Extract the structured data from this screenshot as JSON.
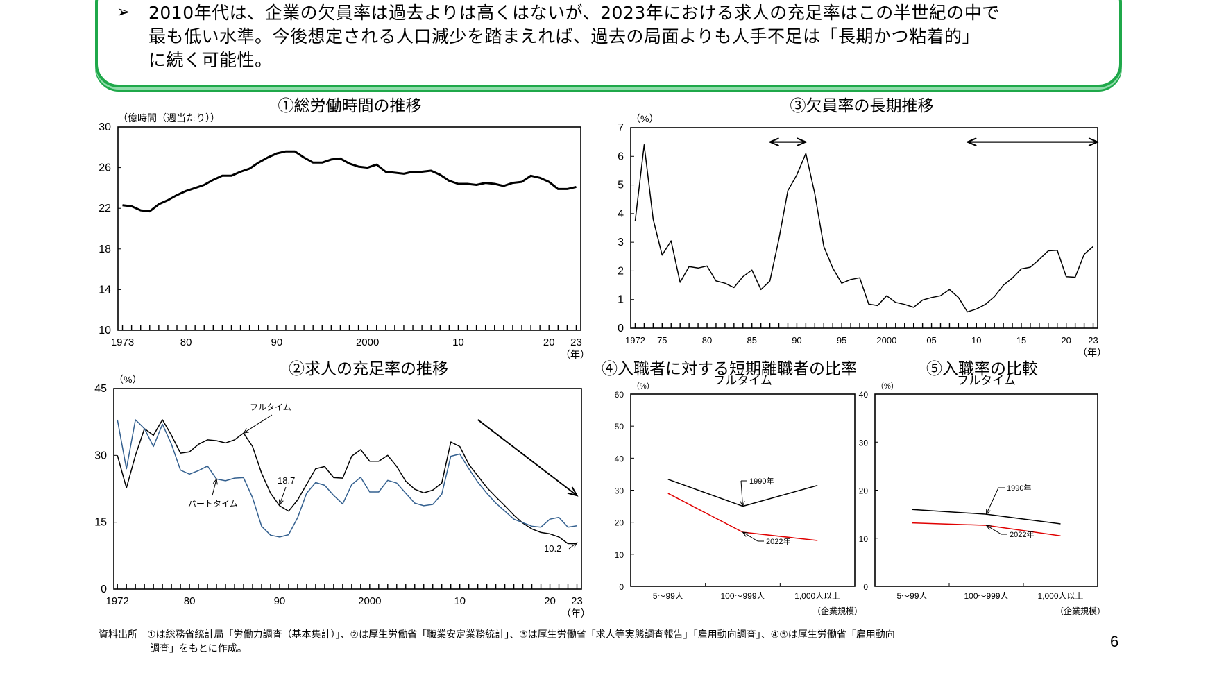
{
  "header": {
    "bullet_icon": "arrow-bullet-icon",
    "lines": [
      "2010年代は、企業の欠員率は過去よりは高くはないが、2023年における求人の充足率はこの半世紀の中で",
      "最も低い水準。今後想定される人口減少を踏まえれば、過去の局面よりも人手不足は「長期かつ粘着的」",
      "に続く可能性。"
    ],
    "border_color": "#1fa84a"
  },
  "chart_data": [
    {
      "type": "line",
      "title": "①総労働時間の推移",
      "ylabel": "（億時間（週当たり））",
      "xunit": "（年）",
      "ylim": [
        10,
        30
      ],
      "yticks": [
        10,
        14,
        18,
        22,
        26,
        30
      ],
      "xlim": [
        1972.5,
        2023.5
      ],
      "xticks": [
        1973,
        1980,
        1990,
        2000,
        2010,
        2020,
        2023
      ],
      "xtick_labels": [
        "1973",
        "80",
        "90",
        "2000",
        "10",
        "20",
        "23"
      ],
      "x_start": 1973,
      "series": [
        {
          "color": "#000000",
          "values": [
            22.3,
            22.2,
            21.8,
            21.7,
            22.4,
            22.8,
            23.3,
            23.7,
            24.0,
            24.3,
            24.8,
            25.2,
            25.2,
            25.6,
            25.9,
            26.5,
            27.0,
            27.4,
            27.6,
            27.6,
            27.0,
            26.5,
            26.5,
            26.8,
            26.9,
            26.4,
            26.1,
            26.0,
            26.3,
            25.6,
            25.5,
            25.4,
            25.6,
            25.6,
            25.7,
            25.3,
            24.7,
            24.4,
            24.4,
            24.3,
            24.5,
            24.4,
            24.2,
            24.5,
            24.6,
            25.2,
            25.0,
            24.6,
            23.9,
            23.9,
            24.1
          ]
        }
      ]
    },
    {
      "type": "line",
      "title": "②求人の充足率の推移",
      "ylabel": "（%）",
      "xunit": "（年）",
      "ylim": [
        0,
        45
      ],
      "yticks": [
        0,
        15,
        30,
        45
      ],
      "xlim": [
        1971.6,
        2023.5
      ],
      "xticks": [
        1972,
        1980,
        1990,
        2000,
        2010,
        2020,
        2023
      ],
      "xtick_labels": [
        "1972",
        "80",
        "90",
        "2000",
        "10",
        "20",
        "23"
      ],
      "x_start": 1972,
      "series": [
        {
          "name": "フルタイム",
          "color": "#000000",
          "values": [
            30,
            22.7,
            30,
            36,
            34.5,
            38,
            34.5,
            30.5,
            30.8,
            32.5,
            33.5,
            33.3,
            32.8,
            33.5,
            35,
            32,
            26,
            21.5,
            18.7,
            17.5,
            20,
            23.5,
            27,
            27.5,
            25,
            24.9,
            29.8,
            31.3,
            28.7,
            28.7,
            30,
            27.5,
            24.2,
            22.4,
            21.6,
            22.2,
            23.8,
            33,
            32,
            28,
            25.4,
            22.8,
            20.7,
            18.7,
            16.6,
            14.8,
            13.5,
            12.7,
            12.4,
            11.7,
            10.2,
            10.2
          ]
        },
        {
          "name": "パートタイム",
          "color": "#34608f",
          "values": [
            38,
            27,
            38,
            36,
            32,
            37,
            32.5,
            26.7,
            25.8,
            26.6,
            27.6,
            24.7,
            24.3,
            24.9,
            25,
            20.5,
            14.1,
            12.1,
            11.7,
            12.2,
            16,
            21.5,
            23.9,
            23.3,
            21,
            19.1,
            23.4,
            25.1,
            21.8,
            21.8,
            24.4,
            23.8,
            21.5,
            19.3,
            18.7,
            19,
            21.3,
            29.8,
            30.3,
            27,
            24,
            21.5,
            19.3,
            17.5,
            15.7,
            14.9,
            14.1,
            13.9,
            15.7,
            16.1,
            13.9,
            14.2
          ]
        }
      ],
      "annotations": [
        {
          "text": "18.7",
          "x": 1990,
          "y": 18.7
        },
        {
          "text": "10.2",
          "x": 2023,
          "y": 10.2
        }
      ],
      "trend_arrow": {
        "from": [
          2012,
          38
        ],
        "to": [
          2023,
          21
        ]
      }
    },
    {
      "type": "line",
      "title": "③欠員率の長期推移",
      "ylabel": "（%）",
      "xunit": "（年）",
      "ylim": [
        0,
        7
      ],
      "yticks": [
        0,
        1,
        2,
        3,
        4,
        5,
        6,
        7
      ],
      "xlim": [
        1971.5,
        2023.5
      ],
      "xticks": [
        1972,
        1975,
        1980,
        1985,
        1990,
        1995,
        2000,
        2005,
        2010,
        2015,
        2020,
        2023
      ],
      "xtick_labels": [
        "1972",
        "75",
        "80",
        "85",
        "90",
        "95",
        "2000",
        "05",
        "10",
        "15",
        "20",
        "23"
      ],
      "x_start": 1972,
      "series": [
        {
          "color": "#000000",
          "values": [
            3.75,
            6.4,
            3.8,
            2.55,
            3.05,
            1.6,
            2.15,
            2.1,
            2.17,
            1.65,
            1.57,
            1.42,
            1.8,
            2.03,
            1.35,
            1.65,
            3.1,
            4.8,
            5.35,
            6.1,
            4.7,
            2.85,
            2.1,
            1.57,
            1.7,
            1.76,
            0.84,
            0.79,
            1.13,
            0.9,
            0.83,
            0.73,
            0.98,
            1.07,
            1.13,
            1.35,
            1.07,
            0.57,
            0.67,
            0.83,
            1.1,
            1.5,
            1.75,
            2.07,
            2.13,
            2.4,
            2.7,
            2.72,
            1.8,
            1.78,
            2.58,
            2.85
          ]
        }
      ],
      "period_arrows": [
        [
          1987,
          1991
        ],
        [
          2009,
          2023.5
        ]
      ],
      "period_arrow_y": 6.5
    },
    {
      "type": "line",
      "title": "④入職者に対する短期離職者の比率",
      "subtitle": "フルタイム",
      "ylabel": "（%）",
      "xlabel": "（企業規模）",
      "ylim": [
        0,
        60
      ],
      "yticks": [
        0,
        10,
        20,
        30,
        40,
        50,
        60
      ],
      "categories": [
        "5～99人",
        "100～999人",
        "1,000人以上"
      ],
      "series": [
        {
          "name": "1990年",
          "color": "#000000",
          "values": [
            33.4,
            25.0,
            31.5
          ]
        },
        {
          "name": "2022年",
          "color": "#e00000",
          "values": [
            29.0,
            16.9,
            14.3
          ]
        }
      ]
    },
    {
      "type": "line",
      "title": "⑤入職率の比較",
      "subtitle": "フルタイム",
      "ylabel": "（%）",
      "xlabel": "（企業規模）",
      "ylim": [
        0,
        40
      ],
      "yticks": [
        0,
        10,
        20,
        30,
        40
      ],
      "categories": [
        "5～99人",
        "100～999人",
        "1,000人以上"
      ],
      "series": [
        {
          "name": "1990年",
          "color": "#000000",
          "values": [
            16.0,
            15.0,
            13.0
          ]
        },
        {
          "name": "2022年",
          "color": "#e00000",
          "values": [
            13.2,
            12.7,
            10.5
          ]
        }
      ]
    }
  ],
  "footer": {
    "line1": "資料出所　①は総務省統計局「労働力調査（基本集計）」、②は厚生労働省「職業安定業務統計」、③は厚生労働省「求人等実態調査報告」「雇用動向調査」、④⑤は厚生労働省「雇用動向",
    "line2": "調査」をもとに作成。"
  },
  "page_number": "6"
}
